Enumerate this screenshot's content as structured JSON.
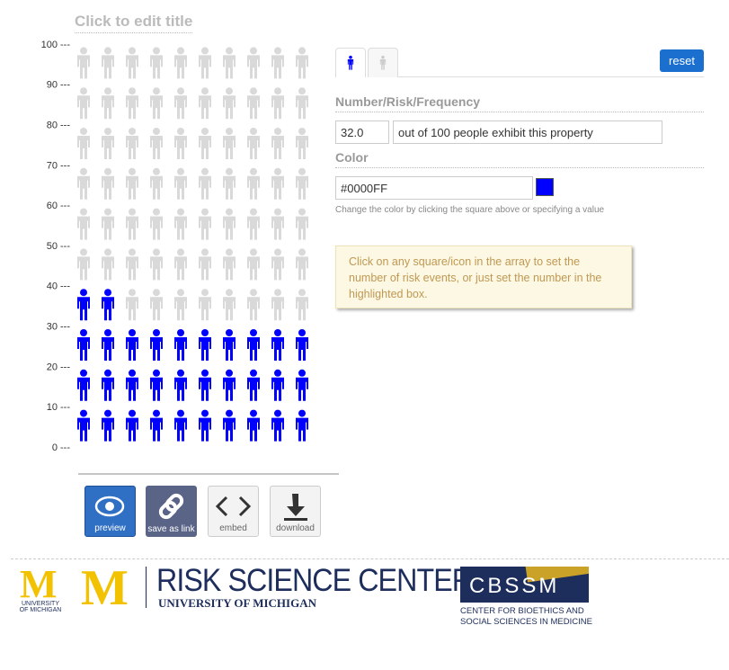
{
  "header": {
    "title": "Click to edit title"
  },
  "icon_array": {
    "value": 32,
    "total": 100,
    "columns": 10,
    "color": "#0000FF",
    "inactive_color": "#d9d9d9",
    "ylim": [
      0,
      100
    ],
    "yticks": [
      {
        "value": 0,
        "label": "0 ---"
      },
      {
        "value": 10,
        "label": "10 ---"
      },
      {
        "value": 20,
        "label": "20 ---"
      },
      {
        "value": 30,
        "label": "30 ---"
      },
      {
        "value": 40,
        "label": "40 ---"
      },
      {
        "value": 50,
        "label": "50 ---"
      },
      {
        "value": 60,
        "label": "60 ---"
      },
      {
        "value": 70,
        "label": "70 ---"
      },
      {
        "value": 80,
        "label": "80 ---"
      },
      {
        "value": 90,
        "label": "90 ---"
      },
      {
        "value": 100,
        "label": "100 ---"
      }
    ]
  },
  "controls": {
    "reset": "reset",
    "number_heading": "Number/Risk/Frequency",
    "number_input": "32.0",
    "number_text": "out of 100 people exhibit this property",
    "color_heading": "Color",
    "color_help": "Change the color by clicking the square above or specifying a value",
    "tip": "Click on any square/icon in the array to set the number of risk events, or just set the number in the highlighted box."
  },
  "buttons": [
    "preview",
    "save as link",
    "embed",
    "download"
  ],
  "footer": {
    "um_letter": "M",
    "um_small": "UNIVERSITY OF MICHIGAN",
    "rsc_title": "RISK SCIENCE CENTER",
    "rsc_sub": "UNIVERSITY OF MICHIGAN",
    "cbssm": "CBSSM",
    "cbssm_line1": "CENTER FOR BIOETHICS AND",
    "cbssm_line2": "SOCIAL SCIENCES IN MEDICINE"
  }
}
